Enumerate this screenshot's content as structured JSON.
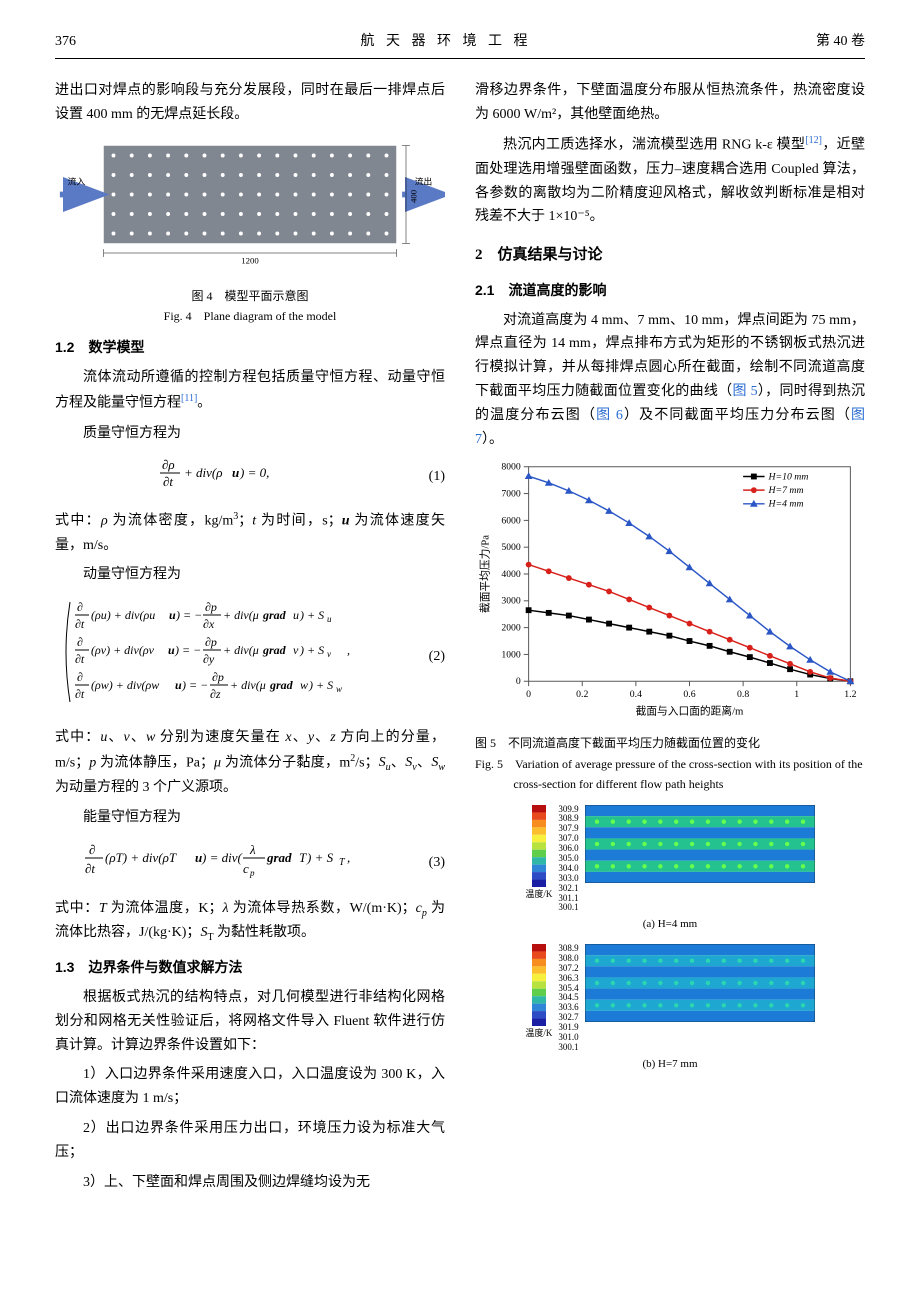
{
  "header": {
    "page_num": "376",
    "journal": "航 天 器 环 境 工 程",
    "issue": "第 40 卷"
  },
  "left": {
    "intro_text": "进出口对焊点的影响段与充分发展段，同时在最后一排焊点后设置 400 mm 的无焊点延长段。",
    "fig4": {
      "label_inflow": "流入",
      "label_outflow": "流出",
      "bottom_dim": "1200",
      "right_dim": "400",
      "dot_color": "#ffffff",
      "bg_color": "#808790",
      "rows": 5,
      "cols": 16,
      "caption_cn": "图 4　模型平面示意图",
      "caption_en": "Fig. 4　Plane diagram of the model"
    },
    "sec12_title": "1.2　数学模型",
    "sec12_p1": "流体流动所遵循的控制方程包括质量守恒方程、动量守恒方程及能量守恒方程",
    "sec12_ref": "[11]",
    "sec12_p2": "。",
    "mass_eq_label": "质量守恒方程为",
    "eq1_num": "(1)",
    "eq1_after": "式中：ρ 为流体密度，kg/m³；t 为时间，s；u 为流体速度矢量，m/s。",
    "momentum_label": "动量守恒方程为",
    "eq2_num": "(2)",
    "eq2_after": "式中：u、v、w 分别为速度矢量在 x、y、z 方向上的分量，m/s；p 为流体静压，Pa；μ 为流体分子黏度，m²/s；Sᵤ、Sᵥ、S_w 为动量方程的 3 个广义源项。",
    "energy_label": "能量守恒方程为",
    "eq3_num": "(3)",
    "eq3_after": "式中：T 为流体温度，K；λ 为流体导热系数，W/(m·K)；cₚ 为流体比热容，J/(kg·K)；S_T 为黏性耗散项。",
    "sec13_title": "1.3　边界条件与数值求解方法",
    "sec13_p1": "根据板式热沉的结构特点，对几何模型进行非结构化网格划分和网格无关性验证后，将网格文件导入 Fluent 软件进行仿真计算。计算边界条件设置如下：",
    "sec13_p2": "1）入口边界条件采用速度入口，入口温度设为 300 K，入口流体速度为 1 m/s；",
    "sec13_p3": "2）出口边界条件采用压力出口，环境压力设为标准大气压；",
    "sec13_p4": "3）上、下壁面和焊点周围及侧边焊缝均设为无"
  },
  "right": {
    "p1": "滑移边界条件，下壁面温度分布服从恒热流条件，热流密度设为 6000 W/m²，其他壁面绝热。",
    "p2a": "热沉内工质选择水，湍流模型选用 RNG k-ε 模型",
    "p2_ref": "[12]",
    "p2b": "，近壁面处理选用增强壁面函数，压力–速度耦合选用 Coupled 算法，各参数的离散均为二阶精度迎风格式，解收敛判断标准是相对残差不大于 1×10⁻⁵。",
    "sec2_title": "2　仿真结果与讨论",
    "sec21_title": "2.1　流道高度的影响",
    "sec21_p1a": "对流道高度为 4 mm、7 mm、10 mm，焊点间距为 75 mm，焊点直径为 14 mm，焊点排布方式为矩形的不锈钢板式热沉进行模拟计算，并从每排焊点圆心所在截面，绘制不同流道高度下截面平均压力随截面位置变化的曲线（",
    "fig5_link": "图 5",
    "sec21_p1b": "），同时得到热沉的温度分布云图（",
    "fig6_link": "图 6",
    "sec21_p1c": "）及不同截面平均压力分布云图（",
    "fig7_link": "图 7",
    "sec21_p1d": "）。",
    "chart5": {
      "type": "line",
      "xlabel": "截面与入口面的距离/m",
      "ylabel": "截面平均压力/Pa",
      "xlim": [
        0,
        1.2
      ],
      "ylim": [
        0,
        8000
      ],
      "xticks": [
        0,
        0.2,
        0.4,
        0.6,
        0.8,
        1.0,
        1.2
      ],
      "yticks": [
        0,
        1000,
        2000,
        3000,
        4000,
        5000,
        6000,
        7000,
        8000
      ],
      "background_color": "#ffffff",
      "axis_color": "#555555",
      "series": [
        {
          "name": "H=10 mm",
          "color": "#000000",
          "marker": "square",
          "x": [
            0,
            0.075,
            0.15,
            0.225,
            0.3,
            0.375,
            0.45,
            0.525,
            0.6,
            0.675,
            0.75,
            0.825,
            0.9,
            0.975,
            1.05,
            1.125,
            1.2
          ],
          "y": [
            2650,
            2550,
            2450,
            2300,
            2150,
            2000,
            1850,
            1700,
            1500,
            1320,
            1100,
            900,
            680,
            450,
            250,
            100,
            0
          ]
        },
        {
          "name": "H=7 mm",
          "color": "#d8201a",
          "marker": "circle",
          "x": [
            0,
            0.075,
            0.15,
            0.225,
            0.3,
            0.375,
            0.45,
            0.525,
            0.6,
            0.675,
            0.75,
            0.825,
            0.9,
            0.975,
            1.05,
            1.125,
            1.2
          ],
          "y": [
            4350,
            4100,
            3850,
            3600,
            3350,
            3050,
            2750,
            2450,
            2150,
            1850,
            1550,
            1250,
            950,
            650,
            350,
            120,
            0
          ]
        },
        {
          "name": "H=4 mm",
          "color": "#2a56c6",
          "marker": "triangle",
          "x": [
            0,
            0.075,
            0.15,
            0.225,
            0.3,
            0.375,
            0.45,
            0.525,
            0.6,
            0.675,
            0.75,
            0.825,
            0.9,
            0.975,
            1.05,
            1.125,
            1.2
          ],
          "y": [
            7650,
            7400,
            7100,
            6750,
            6350,
            5900,
            5400,
            4850,
            4250,
            3650,
            3050,
            2450,
            1850,
            1300,
            800,
            350,
            0
          ]
        }
      ],
      "legend_pos": "top-right",
      "caption_cn": "图 5　不同流道高度下截面平均压力随截面位置的变化",
      "caption_en": "Fig. 5　Variation of average pressure of the cross-section with its position of the cross-section for different flow path heights"
    },
    "fig6a": {
      "sub_label": "(a)  H=4 mm",
      "temp_axis": "温度/K",
      "colorbar_values": [
        "309.9",
        "308.9",
        "307.9",
        "307.0",
        "306.0",
        "305.0",
        "304.0",
        "303.0",
        "302.1",
        "301.1",
        "300.1"
      ],
      "colorbar_colors": [
        "#b70e0e",
        "#e84a1e",
        "#f68d1e",
        "#fbbf2e",
        "#f7f03c",
        "#b8e23f",
        "#5fcf4b",
        "#2fb8a8",
        "#2f86d6",
        "#2c4bc5",
        "#1b1fa3"
      ],
      "stripe_colors": [
        "#1c7bd6",
        "#24c28e",
        "#1c7bd6",
        "#24c28e",
        "#1c7bd6",
        "#24c28e",
        "#1c7bd6"
      ],
      "dot_color": "#66ff4d"
    },
    "fig6b": {
      "sub_label": "(b)  H=7 mm",
      "temp_axis": "温度/K",
      "colorbar_values": [
        "308.9",
        "308.0",
        "307.2",
        "306.3",
        "305.4",
        "304.5",
        "303.6",
        "302.7",
        "301.9",
        "301.0",
        "300.1"
      ],
      "colorbar_colors": [
        "#b70e0e",
        "#e84a1e",
        "#f68d1e",
        "#fbbf2e",
        "#f7f03c",
        "#b8e23f",
        "#5fcf4b",
        "#2fb8a8",
        "#2f86d6",
        "#2c4bc5",
        "#1b1fa3"
      ],
      "stripe_colors": [
        "#1c7bd6",
        "#1ea7d0",
        "#1c7bd6",
        "#1ea7d0",
        "#1c7bd6",
        "#1ea7d0",
        "#1c7bd6"
      ],
      "dot_color": "#2bd6b0"
    }
  }
}
